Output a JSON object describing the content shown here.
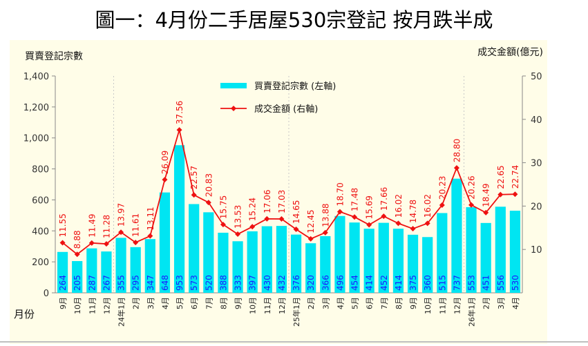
{
  "title": "圖一：4月份二手居屋530宗登記 按月跌半成",
  "chart_data": {
    "type": "bar",
    "title": "圖一：4月份二手居屋530宗登記 按月跌半成",
    "xlabel": "月份",
    "ylabel": "買賣登記宗數",
    "y2label": "成交金額(億元)",
    "ylim": [
      0,
      1400
    ],
    "y2lim": [
      0,
      50
    ],
    "yticks": [
      "0",
      "200",
      "400",
      "600",
      "800",
      "1,000",
      "1,200",
      "1,400"
    ],
    "y2ticks": [
      "10",
      "20",
      "30",
      "40",
      "50"
    ],
    "categories": [
      "9月",
      "10月",
      "11月",
      "12月",
      "24年1月",
      "2月",
      "3月",
      "4月",
      "5月",
      "6月",
      "7月",
      "8月",
      "9月",
      "10月",
      "11月",
      "12月",
      "25年1月",
      "2月",
      "3月",
      "4月",
      "5月",
      "6月",
      "7月",
      "8月",
      "9月",
      "10月",
      "11月",
      "12月",
      "26年1月",
      "2月",
      "3月",
      "4月"
    ],
    "series": [
      {
        "name": "買賣登記宗數 (左軸)",
        "type": "bar",
        "axis": "left",
        "values": [
          264,
          205,
          287,
          267,
          355,
          295,
          347,
          648,
          953,
          573,
          520,
          388,
          333,
          397,
          430,
          432,
          376,
          320,
          366,
          496,
          454,
          414,
          452,
          414,
          375,
          360,
          515,
          737,
          553,
          451,
          556,
          530
        ]
      },
      {
        "name": "成交金額 (右軸)",
        "type": "line",
        "axis": "right",
        "values": [
          11.55,
          8.88,
          11.49,
          11.28,
          13.97,
          11.61,
          13.11,
          26.09,
          37.56,
          22.57,
          20.83,
          15.75,
          13.53,
          15.24,
          17.06,
          17.03,
          14.65,
          12.45,
          13.88,
          18.7,
          17.48,
          15.69,
          17.66,
          16.02,
          14.78,
          16.02,
          20.23,
          28.8,
          20.26,
          18.49,
          22.65,
          22.74
        ]
      }
    ],
    "legend": "top-center",
    "grid": false,
    "colors": {
      "bar": "#00e5f2",
      "bar_label": "#1a1aff",
      "line": "#ee1111",
      "plot_bg": "#fffde8"
    }
  }
}
